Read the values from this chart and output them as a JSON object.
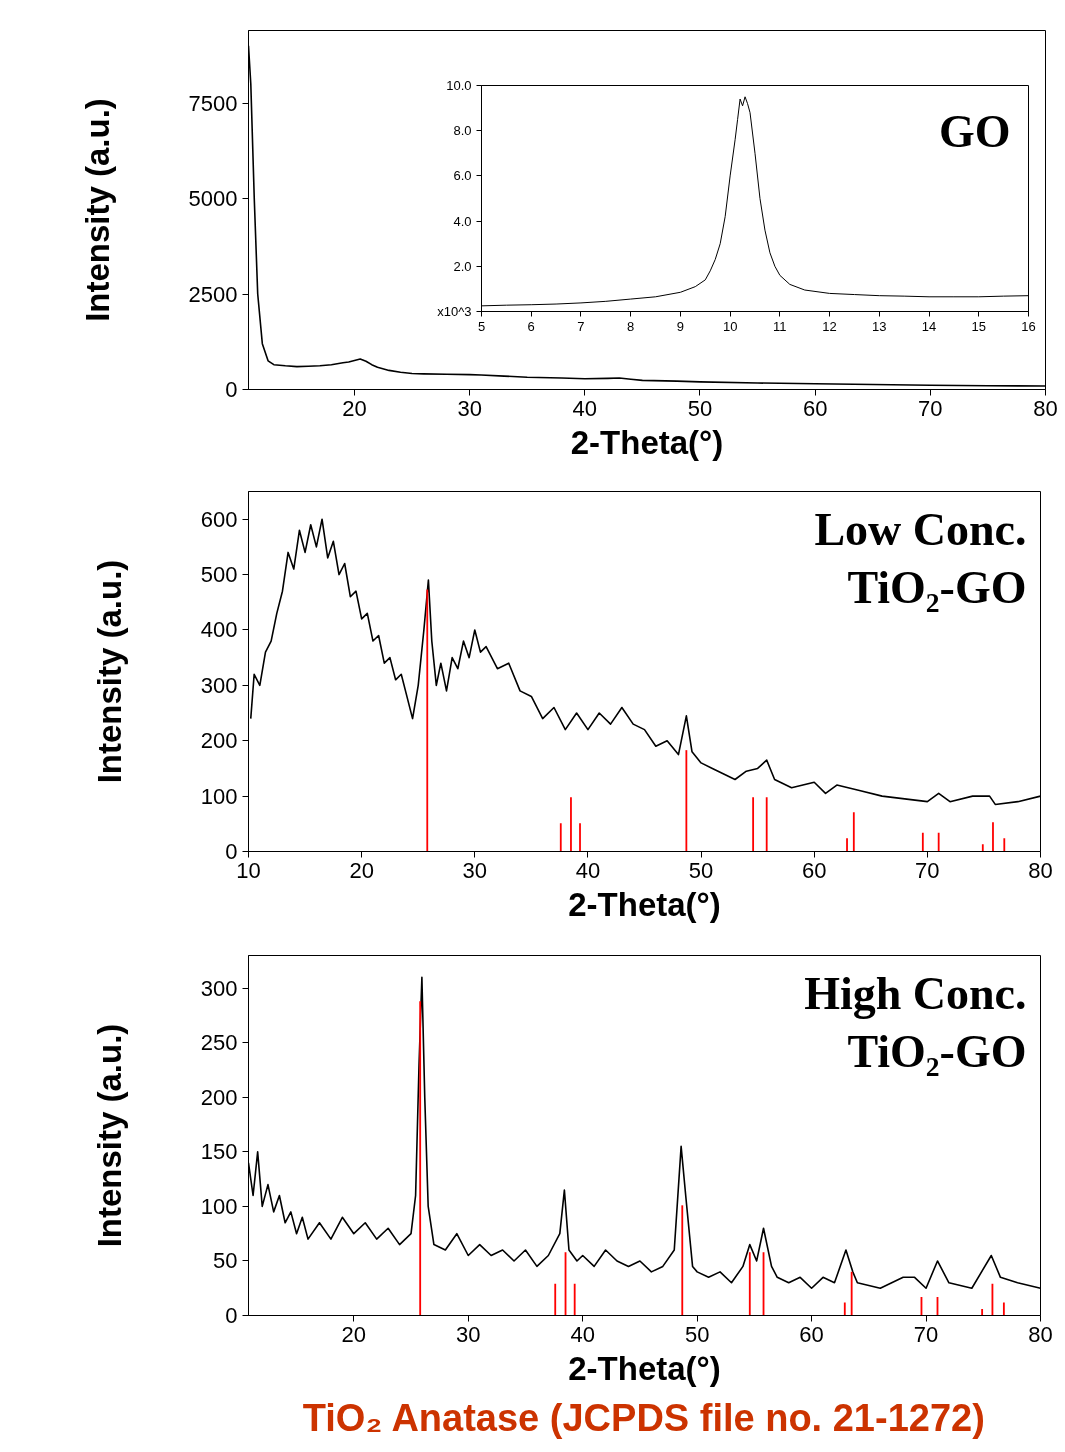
{
  "chart_data": [
    {
      "type": "line",
      "xlabel": "2-Theta(°)",
      "ylabel": "Intensity (a.u.)",
      "xlim": [
        10.8,
        80
      ],
      "ylim": [
        0,
        9400
      ],
      "xticks": [
        20,
        30,
        40,
        50,
        60,
        70,
        80
      ],
      "yticks": [
        0,
        2500,
        5000,
        7500
      ],
      "series": [
        {
          "color": "#000000",
          "x": [
            10.8,
            11.0,
            11.3,
            11.6,
            12.0,
            12.5,
            13,
            14,
            15,
            16,
            17,
            18,
            19,
            19.5,
            20,
            20.5,
            21,
            21.5,
            22,
            23,
            24,
            25,
            26,
            28,
            30,
            31,
            33,
            35,
            38,
            40,
            42,
            43,
            44,
            45,
            48,
            50,
            55,
            60,
            65,
            70,
            75,
            80
          ],
          "values": [
            9000,
            8000,
            5000,
            2500,
            1200,
            750,
            650,
            620,
            600,
            610,
            620,
            650,
            700,
            720,
            760,
            800,
            740,
            650,
            580,
            500,
            450,
            420,
            410,
            400,
            390,
            380,
            350,
            320,
            300,
            280,
            290,
            300,
            270,
            240,
            220,
            200,
            170,
            150,
            130,
            110,
            100,
            90
          ]
        }
      ]
    },
    {
      "type": "line",
      "xlim": [
        5,
        16
      ],
      "ylim": [
        0,
        10
      ],
      "xticks": [
        5,
        6,
        7,
        8,
        9,
        10,
        11,
        12,
        13,
        14,
        15,
        16
      ],
      "yticks": [
        {
          "value": 0,
          "label": "x10^3"
        },
        {
          "value": 2,
          "label": "2.0"
        },
        {
          "value": 4,
          "label": "4.0"
        },
        {
          "value": 6,
          "label": "6.0"
        },
        {
          "value": 8,
          "label": "8.0"
        },
        {
          "value": 10,
          "label": "10.0"
        }
      ],
      "annotations": [
        "GO"
      ],
      "series": [
        {
          "color": "#000000",
          "x": [
            5,
            5.5,
            6,
            6.5,
            7,
            7.5,
            8,
            8.5,
            9,
            9.3,
            9.5,
            9.6,
            9.7,
            9.8,
            9.9,
            10.0,
            10.1,
            10.15,
            10.2,
            10.25,
            10.3,
            10.35,
            10.4,
            10.5,
            10.6,
            10.7,
            10.8,
            10.9,
            11.0,
            11.2,
            11.5,
            12,
            12.5,
            13,
            13.5,
            14,
            14.5,
            15,
            15.5,
            16
          ],
          "values": [
            0.25,
            0.28,
            0.3,
            0.33,
            0.38,
            0.45,
            0.55,
            0.65,
            0.85,
            1.1,
            1.4,
            1.8,
            2.3,
            3.0,
            4.2,
            6.0,
            7.6,
            8.5,
            9.4,
            9.1,
            9.5,
            9.2,
            8.8,
            7.0,
            5.0,
            3.6,
            2.6,
            2.0,
            1.6,
            1.2,
            0.95,
            0.8,
            0.75,
            0.7,
            0.68,
            0.65,
            0.65,
            0.65,
            0.68,
            0.7
          ]
        }
      ]
    },
    {
      "type": "line",
      "xlabel": "2-Theta(°)",
      "ylabel": "Intensity (a.u.)",
      "xlim": [
        10,
        80
      ],
      "ylim": [
        0,
        650
      ],
      "xticks": [
        10,
        20,
        30,
        40,
        50,
        60,
        70,
        80
      ],
      "yticks": [
        0,
        100,
        200,
        300,
        400,
        500,
        600
      ],
      "annotations": [
        "Low Conc.\nTiO₂-GO"
      ],
      "series": [
        {
          "color": "#000000",
          "x": [
            10.2,
            10.5,
            11,
            11.5,
            12,
            12.5,
            13,
            13.5,
            14,
            14.5,
            15,
            15.5,
            16,
            16.5,
            17,
            17.5,
            18,
            18.5,
            19,
            19.5,
            20,
            20.5,
            21,
            21.5,
            22,
            22.5,
            23,
            23.5,
            24,
            24.5,
            25,
            25.5,
            25.9,
            26.2,
            26.6,
            27,
            27.5,
            28,
            28.5,
            29,
            29.5,
            30,
            30.5,
            31,
            32,
            33,
            34,
            35,
            36,
            37,
            38,
            39,
            40,
            41,
            42,
            43,
            44,
            45,
            46,
            47,
            48,
            48.7,
            49.2,
            50,
            51,
            52,
            53,
            54,
            55,
            55.8,
            56.5,
            58,
            60,
            61,
            62,
            64,
            66,
            68,
            70,
            71,
            72,
            74,
            75.5,
            76,
            78,
            80
          ],
          "values": [
            240,
            320,
            300,
            360,
            380,
            430,
            470,
            540,
            510,
            580,
            540,
            590,
            550,
            600,
            530,
            560,
            500,
            520,
            460,
            470,
            420,
            430,
            380,
            390,
            340,
            350,
            310,
            320,
            280,
            240,
            300,
            400,
            490,
            380,
            300,
            340,
            290,
            350,
            330,
            380,
            350,
            400,
            360,
            370,
            330,
            340,
            290,
            280,
            240,
            260,
            220,
            250,
            220,
            250,
            230,
            260,
            230,
            220,
            190,
            200,
            175,
            245,
            180,
            160,
            150,
            140,
            130,
            145,
            150,
            165,
            130,
            115,
            125,
            105,
            120,
            110,
            100,
            95,
            90,
            105,
            90,
            100,
            100,
            85,
            90,
            100
          ]
        },
        {
          "type": "bar",
          "color": "#ff0000",
          "x": [
            25.8,
            37.6,
            38.5,
            39.3,
            48.7,
            54.6,
            55.8,
            62.9,
            63.5,
            69.6,
            71.0,
            74.9,
            75.8,
            76.8
          ],
          "values": [
            473,
            51,
            98,
            51,
            183,
            98,
            98,
            24,
            71,
            34,
            34,
            13,
            53,
            24
          ]
        }
      ]
    },
    {
      "type": "line",
      "xlabel": "2-Theta(°)",
      "ylabel": "Intensity (a.u.)",
      "xlim": [
        10.8,
        80
      ],
      "ylim": [
        0,
        330
      ],
      "xticks": [
        20,
        30,
        40,
        50,
        60,
        70,
        80
      ],
      "yticks": [
        0,
        50,
        100,
        150,
        200,
        250,
        300
      ],
      "annotations": [
        "High Conc.\nTiO₂-GO",
        "TiO₂ Anatase (JCPDS file no. 21-1272)"
      ],
      "series": [
        {
          "color": "#000000",
          "x": [
            10.8,
            11.2,
            11.6,
            12,
            12.5,
            13,
            13.5,
            14,
            14.5,
            15,
            15.5,
            16,
            17,
            18,
            19,
            20,
            21,
            22,
            23,
            24,
            25,
            25.4,
            25.7,
            25.95,
            26.2,
            26.5,
            27,
            28,
            29,
            30,
            31,
            32,
            33,
            34,
            35,
            36,
            37,
            38,
            38.4,
            38.8,
            39.5,
            40,
            41,
            42,
            43,
            44,
            45,
            46,
            47,
            48,
            48.6,
            49,
            49.6,
            50,
            51,
            52,
            53,
            54,
            54.6,
            55.2,
            55.8,
            56.5,
            57,
            58,
            59,
            60,
            61,
            62,
            63,
            63.6,
            64,
            66,
            68,
            69,
            70,
            71,
            72,
            74,
            75.7,
            76.5,
            78,
            80
          ],
          "values": [
            140,
            110,
            150,
            100,
            120,
            95,
            110,
            85,
            95,
            75,
            90,
            70,
            85,
            70,
            90,
            75,
            85,
            70,
            80,
            65,
            75,
            110,
            230,
            310,
            200,
            100,
            65,
            60,
            75,
            55,
            65,
            55,
            60,
            50,
            60,
            45,
            55,
            75,
            115,
            60,
            50,
            55,
            45,
            60,
            50,
            45,
            50,
            40,
            45,
            60,
            155,
            110,
            45,
            40,
            35,
            40,
            30,
            45,
            65,
            50,
            80,
            45,
            35,
            30,
            35,
            25,
            35,
            30,
            60,
            40,
            30,
            25,
            35,
            35,
            25,
            50,
            30,
            25,
            55,
            35,
            30,
            25
          ]
        },
        {
          "type": "bar",
          "color": "#ff0000",
          "x": [
            25.8,
            37.6,
            38.5,
            39.3,
            48.7,
            54.6,
            55.8,
            62.9,
            63.5,
            69.6,
            71.0,
            74.9,
            75.8,
            76.8
          ],
          "values": [
            288,
            29,
            58,
            29,
            101,
            58,
            58,
            12,
            40,
            17,
            17,
            6,
            29,
            12
          ]
        }
      ]
    }
  ]
}
